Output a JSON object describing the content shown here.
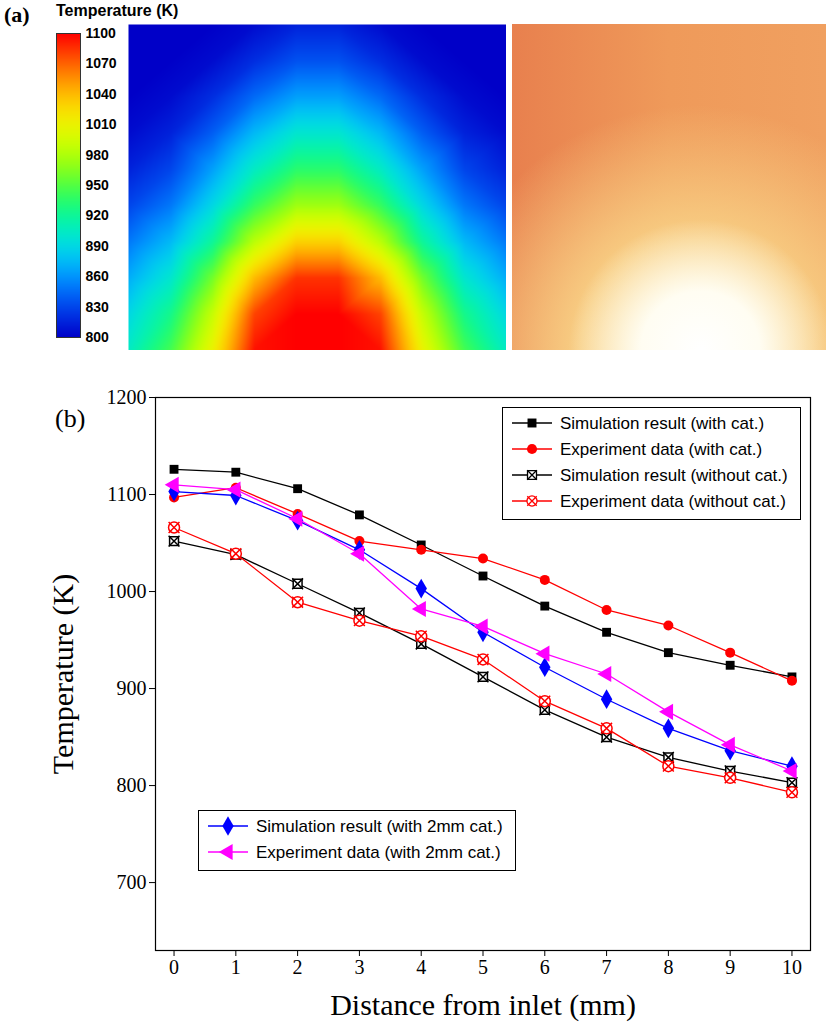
{
  "chart_data": [
    {
      "type": "heatmap",
      "panel_label": "(a)",
      "tick_labels": false,
      "cells": [
        [
          800,
          800,
          800,
          805,
          815,
          815,
          805,
          800,
          800,
          800
        ],
        [
          800,
          800,
          805,
          820,
          835,
          835,
          820,
          805,
          800,
          800
        ],
        [
          800,
          805,
          820,
          845,
          865,
          865,
          845,
          820,
          805,
          800
        ],
        [
          805,
          815,
          840,
          875,
          900,
          900,
          875,
          840,
          815,
          805
        ],
        [
          815,
          830,
          865,
          905,
          935,
          935,
          905,
          865,
          830,
          815
        ],
        [
          830,
          850,
          890,
          940,
          975,
          975,
          940,
          890,
          850,
          830
        ],
        [
          850,
          875,
          920,
          985,
          1030,
          1030,
          985,
          920,
          875,
          850
        ],
        [
          870,
          900,
          960,
          1040,
          1085,
          1085,
          1040,
          960,
          900,
          870
        ],
        [
          890,
          925,
          990,
          1080,
          1100,
          1100,
          1080,
          990,
          925,
          890
        ],
        [
          905,
          945,
          1010,
          1095,
          1100,
          1100,
          1095,
          1010,
          945,
          905
        ]
      ],
      "colorbar": {
        "label": "Temperature (K)",
        "range": [
          800,
          1100
        ],
        "ticks": [
          800,
          830,
          860,
          890,
          920,
          950,
          980,
          1010,
          1040,
          1070,
          1100
        ]
      }
    },
    {
      "type": "line",
      "panel_label": "(b)",
      "xlabel": "Distance from inlet (mm)",
      "ylabel": "Temperature (K)",
      "x": [
        0,
        1,
        2,
        3,
        4,
        5,
        6,
        7,
        8,
        9,
        10
      ],
      "xlim": [
        -0.3,
        10.3
      ],
      "xticks": [
        0,
        1,
        2,
        3,
        4,
        5,
        6,
        7,
        8,
        9,
        10
      ],
      "ylim": [
        630,
        1200
      ],
      "yticks": [
        700,
        800,
        900,
        1000,
        1100,
        1200
      ],
      "legend": "upper right",
      "series": [
        {
          "name": "Simulation result (with cat.)",
          "color": "#000000",
          "marker": "square",
          "values": [
            1126,
            1123,
            1106,
            1079,
            1048,
            1016,
            985,
            958,
            937,
            924,
            912
          ]
        },
        {
          "name": "Experiment data (with cat.)",
          "color": "#ff0000",
          "marker": "circle",
          "values": [
            1097,
            1107,
            1080,
            1052,
            1043,
            1034,
            1012,
            981,
            965,
            937,
            908
          ]
        },
        {
          "name": "Simulation result (without cat.)",
          "color": "#000000",
          "marker": "x-square",
          "values": [
            1052,
            1038,
            1008,
            978,
            946,
            912,
            878,
            850,
            829,
            815,
            803
          ]
        },
        {
          "name": "Experiment data (without cat.)",
          "color": "#ff0000",
          "marker": "x-circle",
          "values": [
            1066,
            1039,
            989,
            970,
            954,
            930,
            887,
            859,
            820,
            808,
            793
          ]
        },
        {
          "name": "Simulation result (with 2mm cat.)",
          "color": "#0000ff",
          "marker": "diamond",
          "legend": "lower left",
          "values": [
            1103,
            1099,
            1073,
            1043,
            1003,
            958,
            922,
            889,
            859,
            836,
            820
          ]
        },
        {
          "name": "Experiment data (with 2mm cat.)",
          "color": "#ff00ff",
          "marker": "triangle-left",
          "legend": "lower left",
          "values": [
            1110,
            1105,
            1075,
            1039,
            982,
            964,
            936,
            915,
            876,
            842,
            815
          ]
        }
      ]
    }
  ]
}
